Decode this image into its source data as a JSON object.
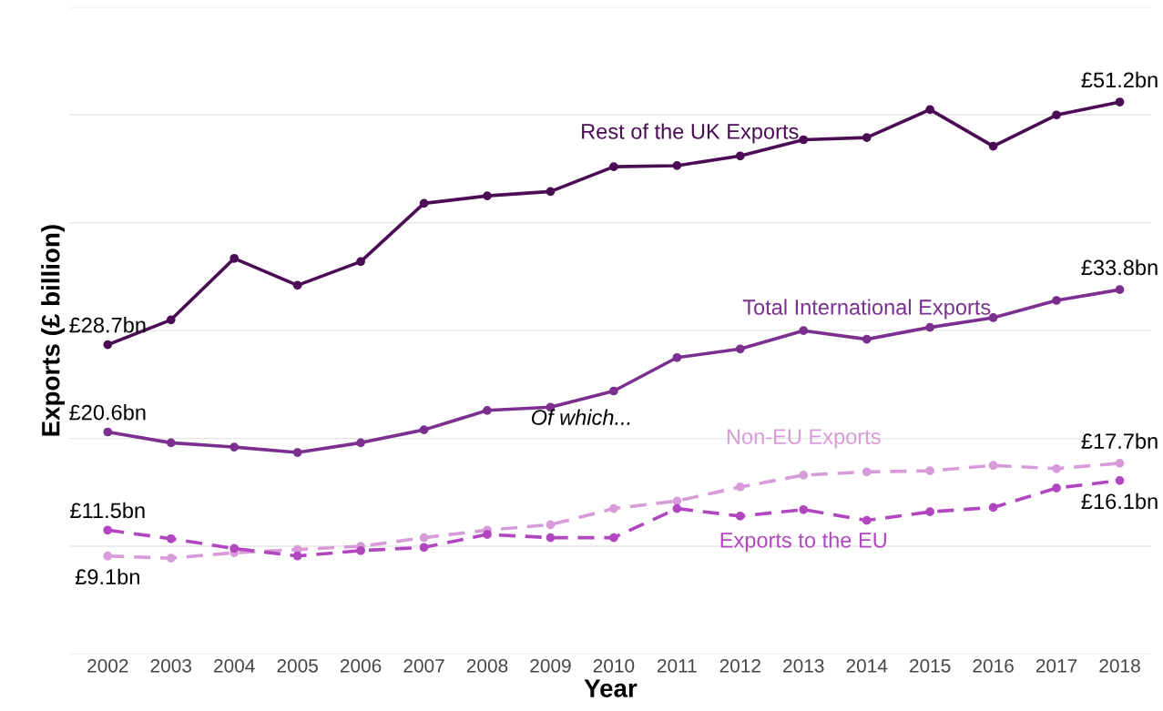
{
  "chart_data": {
    "type": "line",
    "xlabel": "Year",
    "ylabel": "Exports (£ billion)",
    "categories": [
      "2002",
      "2003",
      "2004",
      "2005",
      "2006",
      "2007",
      "2008",
      "2009",
      "2010",
      "2011",
      "2012",
      "2013",
      "2014",
      "2015",
      "2016",
      "2017",
      "2018"
    ],
    "series": [
      {
        "name": "Rest of the UK Exports",
        "color": "#4b0c55",
        "line_style": "solid",
        "values": [
          28.7,
          31.0,
          36.7,
          34.2,
          36.4,
          41.8,
          42.5,
          42.9,
          45.2,
          45.3,
          46.2,
          47.7,
          47.9,
          50.5,
          47.1,
          50.0,
          51.2
        ],
        "value_labels": [
          "£28.7bn",
          null,
          null,
          null,
          null,
          null,
          null,
          null,
          null,
          null,
          null,
          null,
          null,
          null,
          null,
          null,
          "£51.2bn"
        ]
      },
      {
        "name": "Total International Exports",
        "color": "#7b2f8e",
        "line_style": "solid",
        "values": [
          20.6,
          19.6,
          19.2,
          18.7,
          19.6,
          20.8,
          22.6,
          22.9,
          24.4,
          27.5,
          28.3,
          30.0,
          29.2,
          30.3,
          31.2,
          32.8,
          33.8
        ],
        "value_labels": [
          "£20.6bn",
          null,
          null,
          null,
          null,
          null,
          null,
          null,
          null,
          null,
          null,
          null,
          null,
          null,
          null,
          null,
          "£33.8bn"
        ]
      },
      {
        "name": "Non-EU Exports",
        "color": "#d79bd9",
        "line_style": "dashed",
        "values": [
          9.1,
          8.9,
          9.4,
          9.7,
          10.0,
          10.8,
          11.5,
          12.0,
          13.5,
          14.2,
          15.5,
          16.6,
          16.9,
          17.0,
          17.5,
          17.2,
          17.7
        ],
        "value_labels": [
          "£9.1bn",
          null,
          null,
          null,
          null,
          null,
          null,
          null,
          null,
          null,
          null,
          null,
          null,
          null,
          null,
          null,
          "£17.7bn"
        ]
      },
      {
        "name": "Exports to the EU",
        "color": "#b146c0",
        "line_style": "dashed",
        "values": [
          11.5,
          10.7,
          9.8,
          9.1,
          9.6,
          9.9,
          11.1,
          10.8,
          10.8,
          13.5,
          12.8,
          13.4,
          12.4,
          13.2,
          13.6,
          15.4,
          16.1
        ],
        "value_labels": [
          "£11.5bn",
          null,
          null,
          null,
          null,
          null,
          null,
          null,
          null,
          null,
          null,
          null,
          null,
          null,
          null,
          null,
          "£16.1bn"
        ]
      }
    ],
    "annotations": [
      "Of which..."
    ],
    "marker": "circle",
    "grid": "y",
    "tick_labels": "x",
    "legend": false,
    "ylim": [
      0,
      60
    ],
    "yticks": [
      {
        "value": 0,
        "label": null
      },
      {
        "value": 10,
        "label": null
      },
      {
        "value": 20,
        "label": null
      },
      {
        "value": 30,
        "label": null
      },
      {
        "value": 40,
        "label": null
      },
      {
        "value": 50,
        "label": null
      },
      {
        "value": 60,
        "label": null
      }
    ]
  }
}
